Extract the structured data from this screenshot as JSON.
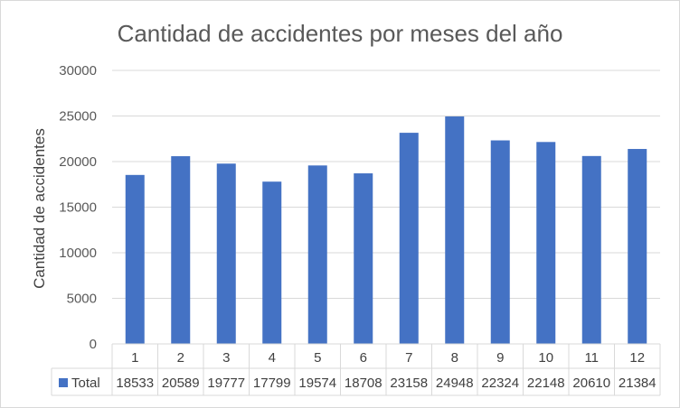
{
  "chart_data": {
    "type": "bar",
    "title": "Cantidad de accidentes por meses del año",
    "xlabel": "",
    "ylabel": "Cantidad de accidentes",
    "ylim": [
      0,
      30000
    ],
    "yticks": [
      0,
      5000,
      10000,
      15000,
      20000,
      25000,
      30000
    ],
    "grid": true,
    "categories": [
      "1",
      "2",
      "3",
      "4",
      "5",
      "6",
      "7",
      "8",
      "9",
      "10",
      "11",
      "12"
    ],
    "series": [
      {
        "name": "Total",
        "color": "#4472c4",
        "values": [
          18533,
          20589,
          19777,
          17799,
          19574,
          18708,
          23158,
          24948,
          22324,
          22148,
          20610,
          21384
        ]
      }
    ],
    "data_table": true
  }
}
